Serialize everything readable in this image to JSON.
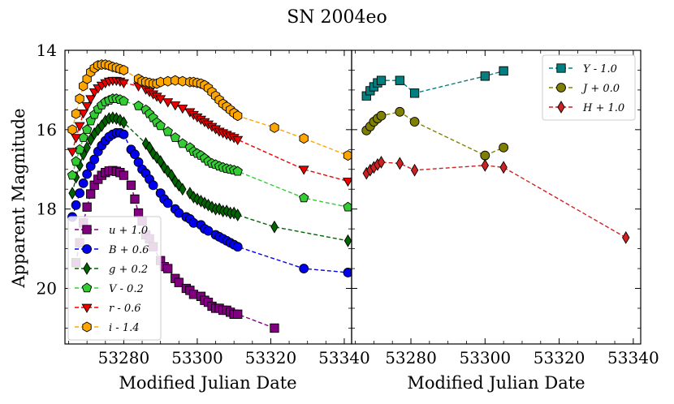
{
  "chart_data": {
    "type": "scatter",
    "title": "SN 2004eo",
    "ylabel": "Apparent Magnitude",
    "y_inverted": true,
    "ylim": [
      14,
      21.4
    ],
    "y_ticks": [
      "14",
      "16",
      "18",
      "20"
    ],
    "panels": [
      {
        "id": "left",
        "xlabel": "Modified Julian Date",
        "xlim": [
          53264,
          53342
        ],
        "x_ticks": [
          "53280",
          "53300",
          "53320",
          "53340"
        ],
        "legend_position": "lower-left",
        "series": [
          {
            "name": "u + 1.0",
            "color": "#800080",
            "marker": "square",
            "x": [
              53267,
              53268,
              53269,
              53270,
              53271,
              53272,
              53273,
              53274,
              53275,
              53276,
              53277,
              53278,
              53279,
              53280,
              53282,
              53283,
              53284,
              53285,
              53286,
              53287,
              53288,
              53290,
              53291,
              53292,
              53294,
              53295,
              53297,
              53298,
              53299,
              53301,
              53302,
              53303,
              53304,
              53305,
              53306,
              53307,
              53308,
              53309,
              53310,
              53311,
              53321
            ],
            "y": [
              19.35,
              18.85,
              18.35,
              17.95,
              17.62,
              17.4,
              17.25,
              17.15,
              17.08,
              17.04,
              17.03,
              17.05,
              17.08,
              17.15,
              17.4,
              17.75,
              18.1,
              18.3,
              18.65,
              18.75,
              18.95,
              19.3,
              19.45,
              19.5,
              19.75,
              19.85,
              20.0,
              20.05,
              20.15,
              20.2,
              20.3,
              20.35,
              20.45,
              20.5,
              20.5,
              20.55,
              20.55,
              20.6,
              20.65,
              20.65,
              21.0
            ]
          },
          {
            "name": "B + 0.6",
            "color": "#0000ee",
            "marker": "circle",
            "x": [
              53266,
              53267,
              53268,
              53269,
              53270,
              53271,
              53272,
              53273,
              53274,
              53275,
              53276,
              53277,
              53278,
              53279,
              53280,
              53282,
              53283,
              53284,
              53285,
              53286,
              53287,
              53288,
              53290,
              53291,
              53292,
              53294,
              53295,
              53297,
              53298,
              53299,
              53301,
              53302,
              53303,
              53305,
              53306,
              53307,
              53308,
              53309,
              53310,
              53311,
              53329,
              53341
            ],
            "y": [
              18.2,
              17.9,
              17.6,
              17.35,
              17.12,
              16.92,
              16.75,
              16.55,
              16.4,
              16.28,
              16.18,
              16.12,
              16.08,
              16.08,
              16.12,
              16.5,
              16.62,
              16.82,
              17.0,
              17.1,
              17.25,
              17.4,
              17.6,
              17.75,
              17.85,
              18.0,
              18.1,
              18.2,
              18.25,
              18.35,
              18.4,
              18.5,
              18.55,
              18.65,
              18.7,
              18.75,
              18.8,
              18.85,
              18.9,
              18.95,
              19.5,
              19.6
            ]
          },
          {
            "name": "g + 0.2",
            "color": "#006400",
            "marker": "diamond",
            "x": [
              53266,
              53267,
              53268,
              53269,
              53270,
              53271,
              53272,
              53273,
              53274,
              53275,
              53276,
              53277,
              53278,
              53279,
              53280,
              53286,
              53287,
              53288,
              53289,
              53290,
              53291,
              53292,
              53293,
              53294,
              53295,
              53296,
              53298,
              53299,
              53300,
              53301,
              53302,
              53303,
              53304,
              53305,
              53306,
              53307,
              53308,
              53309,
              53310,
              53311,
              53321,
              53341
            ],
            "y": [
              17.6,
              17.2,
              16.9,
              16.62,
              16.45,
              16.25,
              16.1,
              16.0,
              15.9,
              15.78,
              15.72,
              15.7,
              15.72,
              15.76,
              15.82,
              16.35,
              16.45,
              16.6,
              16.7,
              16.8,
              16.95,
              17.05,
              17.15,
              17.3,
              17.4,
              17.5,
              17.6,
              17.7,
              17.75,
              17.8,
              17.85,
              17.9,
              17.95,
              18.0,
              18.0,
              18.05,
              18.05,
              18.1,
              18.1,
              18.15,
              18.45,
              18.8
            ]
          },
          {
            "name": "V - 0.2",
            "color": "#33cc33",
            "marker": "pentagon",
            "x": [
              53266,
              53267,
              53268,
              53269,
              53270,
              53271,
              53272,
              53273,
              53274,
              53275,
              53276,
              53277,
              53278,
              53279,
              53280,
              53284,
              53286,
              53287,
              53288,
              53289,
              53290,
              53292,
              53294,
              53296,
              53298,
              53299,
              53300,
              53301,
              53302,
              53303,
              53304,
              53305,
              53306,
              53307,
              53308,
              53309,
              53310,
              53311,
              53329,
              53341
            ],
            "y": [
              17.15,
              16.8,
              16.5,
              16.2,
              16.0,
              15.78,
              15.62,
              15.48,
              15.38,
              15.3,
              15.26,
              15.22,
              15.22,
              15.24,
              15.28,
              15.4,
              15.5,
              15.6,
              15.7,
              15.82,
              15.9,
              16.05,
              16.2,
              16.35,
              16.45,
              16.55,
              16.6,
              16.65,
              16.72,
              16.8,
              16.85,
              16.88,
              16.92,
              16.95,
              16.98,
              17.0,
              17.02,
              17.05,
              17.72,
              17.95
            ]
          },
          {
            "name": "r - 0.6",
            "color": "#ee0000",
            "marker": "triangle-down",
            "x": [
              53266,
              53267,
              53268,
              53269,
              53270,
              53271,
              53272,
              53273,
              53274,
              53275,
              53276,
              53277,
              53278,
              53279,
              53280,
              53284,
              53286,
              53287,
              53288,
              53289,
              53290,
              53292,
              53294,
              53296,
              53298,
              53299,
              53300,
              53301,
              53302,
              53303,
              53304,
              53305,
              53306,
              53307,
              53308,
              53309,
              53310,
              53311,
              53329,
              53341
            ],
            "y": [
              16.55,
              16.2,
              15.9,
              15.58,
              15.4,
              15.22,
              15.05,
              14.95,
              14.88,
              14.82,
              14.78,
              14.76,
              14.76,
              14.78,
              14.82,
              14.9,
              14.98,
              15.04,
              15.1,
              15.16,
              15.22,
              15.3,
              15.38,
              15.46,
              15.55,
              15.62,
              15.68,
              15.74,
              15.8,
              15.86,
              15.92,
              15.98,
              16.04,
              16.08,
              16.12,
              16.16,
              16.2,
              16.25,
              17.0,
              17.3
            ]
          },
          {
            "name": "i - 1.4",
            "color": "#ffa500",
            "marker": "hexagon",
            "x": [
              53266,
              53267,
              53268,
              53269,
              53270,
              53271,
              53272,
              53273,
              53274,
              53275,
              53276,
              53277,
              53278,
              53279,
              53280,
              53284,
              53285,
              53286,
              53287,
              53288,
              53289,
              53290,
              53292,
              53294,
              53296,
              53298,
              53299,
              53300,
              53301,
              53302,
              53303,
              53304,
              53305,
              53306,
              53307,
              53308,
              53309,
              53310,
              53311,
              53321,
              53329,
              53341
            ],
            "y": [
              16.0,
              15.6,
              15.22,
              14.9,
              14.72,
              14.55,
              14.45,
              14.38,
              14.36,
              14.36,
              14.38,
              14.42,
              14.44,
              14.47,
              14.5,
              14.72,
              14.78,
              14.8,
              14.82,
              14.84,
              14.84,
              14.8,
              14.78,
              14.76,
              14.78,
              14.8,
              14.8,
              14.82,
              14.84,
              14.88,
              14.95,
              15.05,
              15.15,
              15.25,
              15.35,
              15.42,
              15.5,
              15.58,
              15.65,
              15.95,
              16.22,
              16.65
            ]
          }
        ]
      },
      {
        "id": "right",
        "xlabel": "Modified Julian Date",
        "xlim": [
          53264,
          53342
        ],
        "x_ticks": [
          "53280",
          "53300",
          "53320",
          "53340"
        ],
        "legend_position": "upper-right",
        "series": [
          {
            "name": "Y - 1.0",
            "color": "#008080",
            "marker": "square",
            "x": [
              53268,
              53269,
              53270,
              53271,
              53272,
              53277,
              53281,
              53300,
              53305
            ],
            "y": [
              15.15,
              15.02,
              14.92,
              14.82,
              14.76,
              14.76,
              15.08,
              14.65,
              14.52
            ]
          },
          {
            "name": "J + 0.0",
            "color": "#808000",
            "marker": "circle",
            "x": [
              53268,
              53269,
              53270,
              53271,
              53272,
              53277,
              53281,
              53300,
              53305
            ],
            "y": [
              16.02,
              15.92,
              15.8,
              15.72,
              15.65,
              15.55,
              15.8,
              16.65,
              16.45
            ]
          },
          {
            "name": "H + 1.0",
            "color": "#cc2222",
            "marker": "diamond",
            "x": [
              53268,
              53269,
              53270,
              53271,
              53272,
              53277,
              53281,
              53300,
              53305,
              53338
            ],
            "y": [
              17.1,
              17.02,
              16.95,
              16.88,
              16.82,
              16.85,
              17.02,
              16.9,
              16.95,
              18.72
            ]
          }
        ]
      }
    ]
  }
}
